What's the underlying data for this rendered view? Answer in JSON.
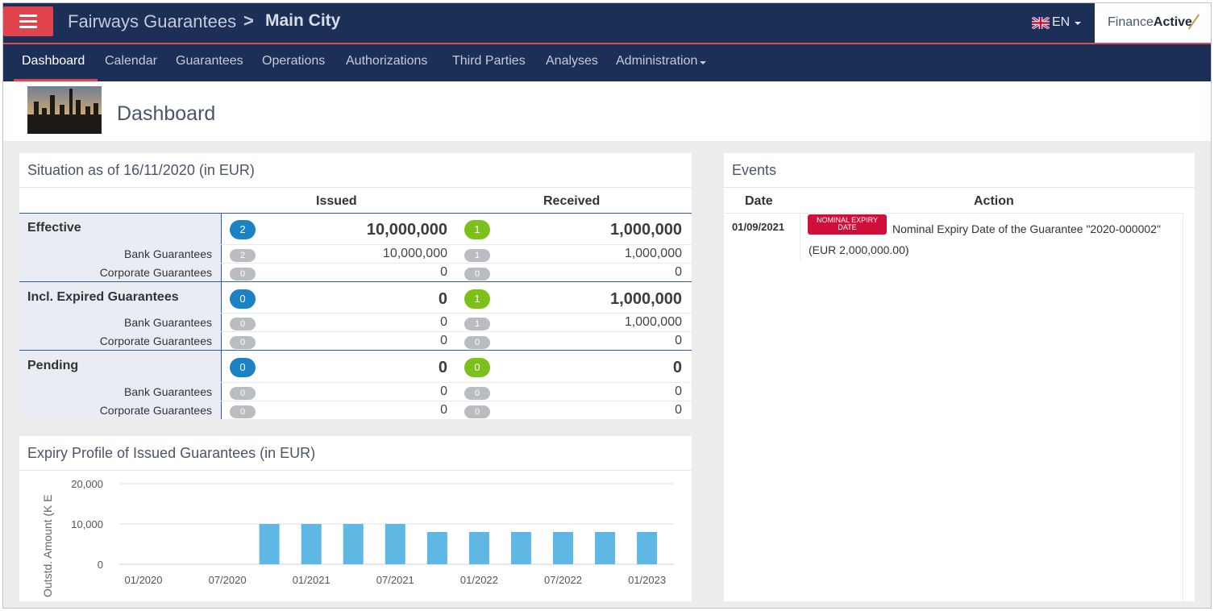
{
  "header": {
    "app_name": "Fairways Guarantees",
    "separator": ">",
    "entity": "Main City",
    "language": "EN",
    "brand_regular": "Finance",
    "brand_bold": "Active"
  },
  "nav": {
    "items": [
      "Dashboard",
      "Calendar",
      "Guarantees",
      "Operations",
      "Authorizations",
      "Third Parties",
      "Analyses",
      "Administration"
    ],
    "active": "Dashboard"
  },
  "page": {
    "title": "Dashboard"
  },
  "situation": {
    "title": "Situation as of 16/11/2020 (in EUR)",
    "col_issued": "Issued",
    "col_received": "Received",
    "sections": [
      {
        "label": "Effective",
        "issued_count": "2",
        "issued_amount": "10,000,000",
        "received_count": "1",
        "received_amount": "1,000,000",
        "rows": [
          {
            "label": "Bank Guarantees",
            "issued_count": "2",
            "issued_amount": "10,000,000",
            "received_count": "1",
            "received_amount": "1,000,000"
          },
          {
            "label": "Corporate Guarantees",
            "issued_count": "0",
            "issued_amount": "0",
            "received_count": "0",
            "received_amount": "0"
          }
        ]
      },
      {
        "label": "Incl. Expired Guarantees",
        "issued_count": "0",
        "issued_amount": "0",
        "received_count": "1",
        "received_amount": "1,000,000",
        "rows": [
          {
            "label": "Bank Guarantees",
            "issued_count": "0",
            "issued_amount": "0",
            "received_count": "1",
            "received_amount": "1,000,000"
          },
          {
            "label": "Corporate Guarantees",
            "issued_count": "0",
            "issued_amount": "0",
            "received_count": "0",
            "received_amount": "0"
          }
        ]
      },
      {
        "label": "Pending",
        "issued_count": "0",
        "issued_amount": "0",
        "received_count": "0",
        "received_amount": "0",
        "rows": [
          {
            "label": "Bank Guarantees",
            "issued_count": "0",
            "issued_amount": "0",
            "received_count": "0",
            "received_amount": "0"
          },
          {
            "label": "Corporate Guarantees",
            "issued_count": "0",
            "issued_amount": "0",
            "received_count": "0",
            "received_amount": "0"
          }
        ]
      }
    ]
  },
  "chart_data": {
    "type": "bar",
    "title": "Expiry Profile of Issued Guarantees (in EUR)",
    "ylabel": "Outstd. Amount (K E",
    "xlabel": "",
    "ylim": [
      0,
      20000
    ],
    "y_ticks": [
      "20,000",
      "10,000",
      "0"
    ],
    "x_ticks": [
      "01/2020",
      "07/2020",
      "01/2021",
      "07/2021",
      "01/2022",
      "07/2022",
      "01/2023"
    ],
    "grid": true,
    "color": "#5fb8e3",
    "categories": [
      "10/2020",
      "01/2021",
      "04/2021",
      "07/2021",
      "10/2021",
      "01/2022",
      "04/2022",
      "07/2022",
      "10/2022",
      "01/2023"
    ],
    "values": [
      10000,
      10000,
      10000,
      10000,
      8000,
      8000,
      8000,
      8000,
      8000,
      8000
    ]
  },
  "events": {
    "title": "Events",
    "col_date": "Date",
    "col_action": "Action",
    "items": [
      {
        "date": "01/09/2021",
        "tag": "NOMINAL EXPIRY DATE",
        "text": "Nominal Expiry Date of the Guarantee \"2020-000002\"",
        "amount": "(EUR 2,000,000.00)"
      }
    ]
  },
  "colors": {
    "navy": "#1c2f57",
    "accent_red": "#e1444c",
    "badge_blue": "#1b82c5",
    "badge_green": "#7cc11a",
    "badge_grey": "#b9bcc0",
    "bar": "#5fb8e3",
    "event_tag": "#d0103a"
  }
}
